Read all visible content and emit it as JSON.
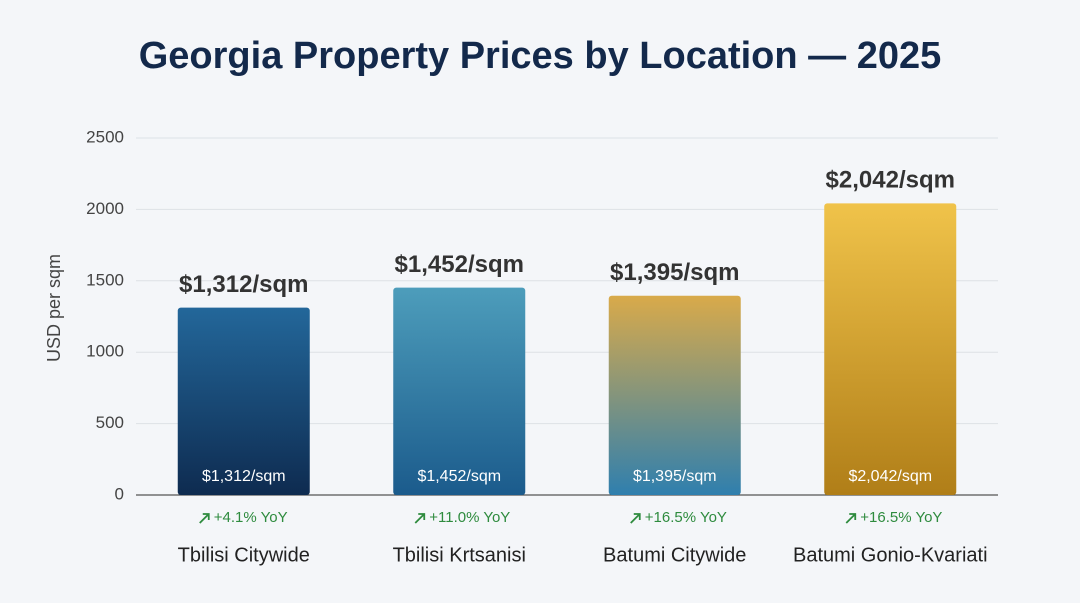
{
  "chart_data": {
    "type": "bar",
    "title": "Georgia Property Prices by Location — 2025",
    "y_label": "USD per sqm",
    "categories": [
      "Tbilisi Citywide",
      "Tbilisi Krtsanisi",
      "Batumi Citywide",
      "Batumi Gonio-Kvariati"
    ],
    "values": [
      1312,
      1452,
      1395,
      2042
    ],
    "value_labels": [
      "$1,312/sqm",
      "$1,452/sqm",
      "$1,395/sqm",
      "$2,042/sqm"
    ],
    "yoy_labels": [
      "+4.1% YoY",
      "+11.0% YoY",
      "+16.5% YoY",
      "+16.5% YoY"
    ],
    "colors": [
      [
        "#23679a",
        "#0e2b50"
      ],
      [
        "#4d9dbb",
        "#1b5b8c"
      ],
      [
        "#d9aa4a",
        "#2f7fae"
      ],
      [
        "#f0c34a",
        "#b07e18"
      ]
    ],
    "ylim": [
      0,
      2500
    ],
    "yticks": [
      0,
      500,
      1000,
      1500,
      2000,
      2500
    ],
    "grid": true
  }
}
